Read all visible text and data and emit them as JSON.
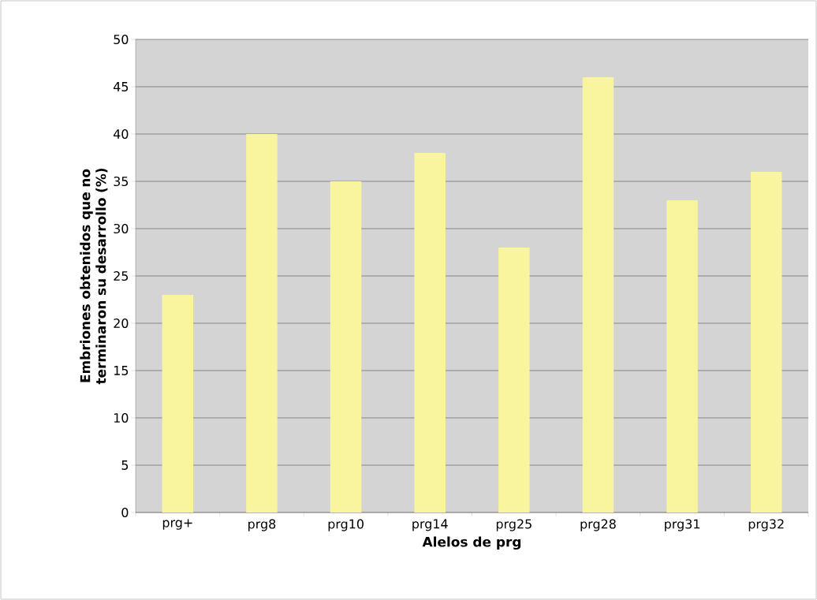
{
  "chart_data": {
    "type": "bar",
    "xlabel": "Alelos de prg",
    "ylabel": "Embriones obtenidos que no terminaron su desarrollo (%)",
    "categories": [
      "prg+",
      "prg8",
      "prg10",
      "prg14",
      "prg25",
      "prg28",
      "prg31",
      "prg32"
    ],
    "values": [
      23,
      40,
      35,
      38,
      28,
      46,
      33,
      36
    ],
    "color": "#f9f59f",
    "ylim": [
      0,
      50
    ],
    "yticks": [
      0,
      5,
      10,
      15,
      20,
      25,
      30,
      35,
      40,
      45,
      50
    ],
    "grid": "y"
  }
}
